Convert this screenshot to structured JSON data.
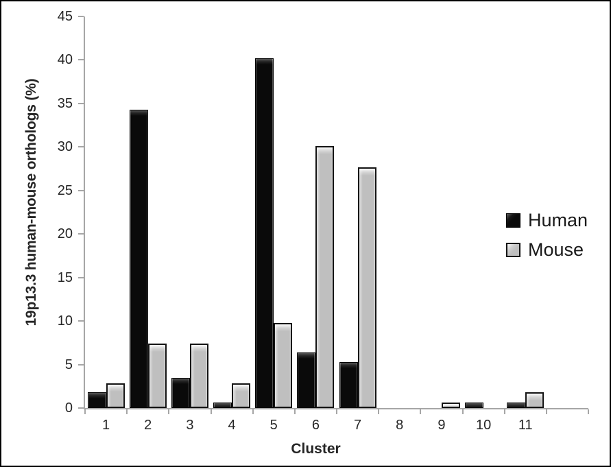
{
  "figure": {
    "background": "#ffffff",
    "frame_color": "#000000"
  },
  "chart_data": {
    "type": "bar",
    "grouping": "grouped",
    "title": "",
    "xlabel": "Cluster",
    "ylabel": "19p13.3 human-mouse orthologs (%)",
    "categories": [
      "1",
      "2",
      "3",
      "4",
      "5",
      "6",
      "7",
      "8",
      "9",
      "10",
      "11"
    ],
    "series": [
      {
        "name": "Human",
        "color": "#0a0a0a",
        "values": [
          1.8,
          34.3,
          3.5,
          0.6,
          40.2,
          6.4,
          5.3,
          0,
          0,
          0.6,
          0.6
        ]
      },
      {
        "name": "Mouse",
        "color": "#bfbfbf",
        "values": [
          2.8,
          7.4,
          7.4,
          2.8,
          9.8,
          30.1,
          27.7,
          0,
          0.6,
          0,
          1.8
        ]
      }
    ],
    "ylim": [
      0,
      45
    ],
    "ytick_step": 5,
    "ytick_labels": [
      "0",
      "5",
      "10",
      "15",
      "20",
      "25",
      "30",
      "35",
      "40",
      "45"
    ],
    "grid": false,
    "legend_position": "right",
    "axis_color": "#a6a6a6",
    "text_color": "#262626",
    "x_slots": 12
  }
}
